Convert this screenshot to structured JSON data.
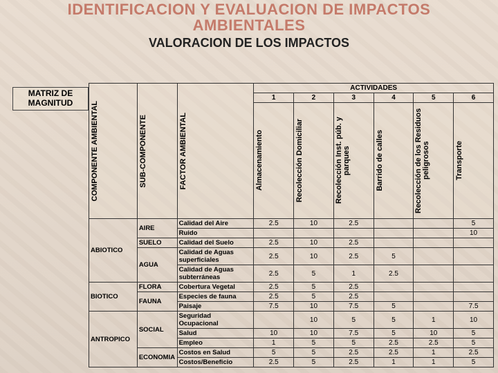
{
  "title_line1": "IDENTIFICACION Y EVALUACION DE IMPACTOS",
  "title_line2": "AMBIENTALES",
  "subtitle": "VALORACION DE LOS IMPACTOS",
  "matrix_label_l1": "MATRIZ DE",
  "matrix_label_l2": "MAGNITUD",
  "headers": {
    "comp": "COMPONENTE AMBIENTAL",
    "sub": "SUB-COMPONENTE",
    "factor": "FACTOR AMBIENTAL",
    "act_group": "ACTIVIDADES",
    "nums": [
      "1",
      "2",
      "3",
      "4",
      "5",
      "6"
    ],
    "acts": [
      "Almacenamiento",
      "Recolección Domiciliar",
      "Recolección Inst. púb. y parques",
      "Barrido de calles",
      "Recolección de los Residuos peligrosos",
      "Transporte"
    ]
  },
  "rows": [
    {
      "comp": "ABIOTICO",
      "sub": "AIRE",
      "factor": "Calidad del Aire",
      "v": [
        "2.5",
        "10",
        "2.5",
        "",
        "",
        "5"
      ]
    },
    {
      "comp": "",
      "sub": "",
      "factor": "Ruido",
      "v": [
        "",
        "",
        "",
        "",
        "",
        "10"
      ]
    },
    {
      "comp": "",
      "sub": "SUELO",
      "factor": "Calidad del Suelo",
      "v": [
        "2.5",
        "10",
        "2.5",
        "",
        "",
        ""
      ]
    },
    {
      "comp": "",
      "sub": "AGUA",
      "factor": "Calidad de Aguas superficiales",
      "v": [
        "2.5",
        "10",
        "2.5",
        "5",
        "",
        ""
      ]
    },
    {
      "comp": "",
      "sub": "",
      "factor": "Calidad de Aguas subterráneas",
      "v": [
        "2.5",
        "5",
        "1",
        "2.5",
        "",
        ""
      ]
    },
    {
      "comp": "BIOTICO",
      "sub": "FLORA",
      "factor": "Cobertura Vegetal",
      "v": [
        "2.5",
        "5",
        "2.5",
        "",
        "",
        ""
      ]
    },
    {
      "comp": "",
      "sub": "FAUNA",
      "factor": "Especies de fauna",
      "v": [
        "2.5",
        "5",
        "2.5",
        "",
        "",
        ""
      ]
    },
    {
      "comp": "",
      "sub": "",
      "factor": "Paisaje",
      "v": [
        "7.5",
        "10",
        "7.5",
        "5",
        "",
        "7.5"
      ]
    },
    {
      "comp": "ANTROPICO",
      "sub": "SOCIAL",
      "factor": "Seguridad Ocupacional",
      "v": [
        "",
        "10",
        "5",
        "5",
        "1",
        "10"
      ]
    },
    {
      "comp": "",
      "sub": "",
      "factor": "Salud",
      "v": [
        "10",
        "10",
        "7.5",
        "5",
        "10",
        "5"
      ]
    },
    {
      "comp": "",
      "sub": "",
      "factor": "Empleo",
      "v": [
        "1",
        "5",
        "5",
        "2.5",
        "2.5",
        "5"
      ]
    },
    {
      "comp": "",
      "sub": "ECONOMIA",
      "factor": "Costos en Salud",
      "v": [
        "5",
        "5",
        "2.5",
        "2.5",
        "1",
        "2.5"
      ]
    },
    {
      "comp": "",
      "sub": "",
      "factor": "Costos/Beneficio",
      "v": [
        "2.5",
        "5",
        "2.5",
        "1",
        "1",
        "5"
      ]
    }
  ]
}
